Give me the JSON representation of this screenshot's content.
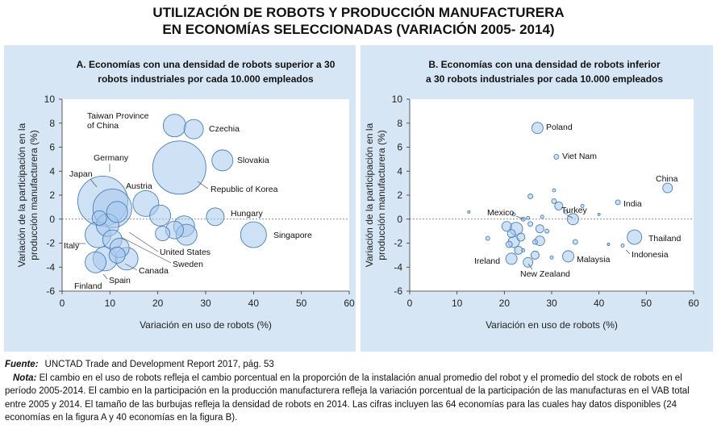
{
  "title_line1": "UTILIZACIÓN DE ROBOTS Y PRODUCCIÓN MANUFACTURERA",
  "title_line2": "EN ECONOMÍAS SELECCIONADAS (VARIACIÓN 2005- 2014)",
  "source_label": "Fuente:",
  "source_text": "UNCTAD Trade and Development Report 2017, pág. 53",
  "note_label": "Nota:",
  "note_text": "El cambio en el uso de robots refleja el cambio porcentual en la proporción de la instalación anual promedio del robot y el promedio del stock de robots en el período 2005-2014. El cambio en la participación en la producción manufacturera refleja la variación porcentual de la participación de las manufacturas en el VAB total entre 2005 y 2014. El tamaño de las burbujas refleja la densidad de robots en 2014. Las cifras incluyen las 64 economías para las cuales hay datos disponibles (24 economías en la figura A y 40 economías en la figura B).",
  "colors": {
    "panel": "#d6e6f4",
    "bubble_fill": "#a7c9ec",
    "bubble_stroke": "#4a7fb6"
  },
  "chart_data": [
    {
      "type": "scatter",
      "title": "A. Economías con una densidad de robots superior a 30 robots industriales por cada 10.000 empleados",
      "title_lines": [
        "A. Economías con una densidad de robots superior a 30",
        "robots industriales por cada 10.000 empleados"
      ],
      "xlabel": "Variación en uso de robots (%)",
      "ylabel_lines": [
        "Variación de la participación en la",
        "producción manufacturera (%)"
      ],
      "xlim": [
        0,
        60
      ],
      "ylim": [
        -6,
        10
      ],
      "xticks": [
        0,
        10,
        20,
        30,
        40,
        50,
        60
      ],
      "yticks": [
        -6,
        -4,
        -2,
        0,
        2,
        4,
        6,
        8,
        10
      ],
      "points": [
        {
          "label": "Taiwan Province of China",
          "x": 23.5,
          "y": 7.8,
          "size": 14
        },
        {
          "label": "Czechia",
          "x": 27.5,
          "y": 7.5,
          "size": 12
        },
        {
          "label": "Slovakia",
          "x": 33.5,
          "y": 4.9,
          "size": 13
        },
        {
          "label": "Republic of Korea",
          "x": 24.5,
          "y": 4.3,
          "size": 33
        },
        {
          "label": "Japan",
          "x": 8.5,
          "y": 1.5,
          "size": 31
        },
        {
          "label": "Germany",
          "x": 10.5,
          "y": 0.9,
          "size": 24
        },
        {
          "label": "Austria",
          "x": 17.5,
          "y": 1.3,
          "size": 16
        },
        {
          "label": "",
          "x": 11.5,
          "y": 0.6,
          "size": 13
        },
        {
          "label": "",
          "x": 7.8,
          "y": 0.1,
          "size": 9
        },
        {
          "label": "",
          "x": 9.5,
          "y": -0.5,
          "size": 14
        },
        {
          "label": "Hungary",
          "x": 32.0,
          "y": 0.2,
          "size": 11
        },
        {
          "label": "",
          "x": 20.5,
          "y": 0.3,
          "size": 13
        },
        {
          "label": "",
          "x": 25.5,
          "y": -0.6,
          "size": 13
        },
        {
          "label": "",
          "x": 21.0,
          "y": -1.2,
          "size": 9
        },
        {
          "label": "",
          "x": 23.5,
          "y": -0.9,
          "size": 11
        },
        {
          "label": "",
          "x": 26.0,
          "y": -1.3,
          "size": 13
        },
        {
          "label": "Singapore",
          "x": 40.0,
          "y": -1.3,
          "size": 16
        },
        {
          "label": "Italy",
          "x": 7.5,
          "y": -1.3,
          "size": 16
        },
        {
          "label": "",
          "x": 10.5,
          "y": -1.7,
          "size": 12
        },
        {
          "label": "United States",
          "x": 12.0,
          "y": -2.4,
          "size": 12
        },
        {
          "label": "Sweden",
          "x": 11.5,
          "y": -3.0,
          "size": 10
        },
        {
          "label": "Canada",
          "x": 13.5,
          "y": -3.3,
          "size": 14
        },
        {
          "label": "Spain",
          "x": 9.0,
          "y": -3.3,
          "size": 15
        },
        {
          "label": "Finland",
          "x": 7.0,
          "y": -3.6,
          "size": 13
        }
      ]
    },
    {
      "type": "scatter",
      "title": "B. Economías con una densidad de robots inferior a 30 robots industriales por cada 10.000 empleados",
      "title_lines": [
        "B. Economías con una densidad de robots inferior",
        "a 30 robots industriales por cada 10.000 empleados"
      ],
      "xlabel": "Variación en uso de robots (%)",
      "ylabel_lines": [
        "Variación de la participación en la",
        "producción manufacturera (%)"
      ],
      "xlim": [
        0,
        60
      ],
      "ylim": [
        -6,
        10
      ],
      "xticks": [
        0,
        10,
        20,
        30,
        40,
        50,
        60
      ],
      "yticks": [
        -6,
        -4,
        -2,
        0,
        2,
        4,
        6,
        8,
        10
      ],
      "points": [
        {
          "label": "Poland",
          "x": 27.0,
          "y": 7.6,
          "size": 7
        },
        {
          "label": "Viet Nam",
          "x": 31.0,
          "y": 5.2,
          "size": 3
        },
        {
          "label": "China",
          "x": 54.5,
          "y": 2.6,
          "size": 6
        },
        {
          "label": "India",
          "x": 44.0,
          "y": 1.4,
          "size": 3
        },
        {
          "label": "Turkey",
          "x": 34.5,
          "y": 0.0,
          "size": 7
        },
        {
          "label": "Mexico",
          "x": 22.0,
          "y": 0.4,
          "size": 2
        },
        {
          "label": "Thailand",
          "x": 47.5,
          "y": -1.5,
          "size": 9
        },
        {
          "label": "Indonesia",
          "x": 45.0,
          "y": -2.2,
          "size": 2
        },
        {
          "label": "Malaysia",
          "x": 33.5,
          "y": -3.1,
          "size": 7
        },
        {
          "label": "Ireland",
          "x": 21.5,
          "y": -3.3,
          "size": 7
        },
        {
          "label": "New Zealand",
          "x": 25.0,
          "y": -3.6,
          "size": 6
        },
        {
          "label": "",
          "x": 12.5,
          "y": 0.6,
          "size": 1.5
        },
        {
          "label": "",
          "x": 16.5,
          "y": -1.6,
          "size": 2.5
        },
        {
          "label": "",
          "x": 20.5,
          "y": -0.6,
          "size": 6
        },
        {
          "label": "",
          "x": 21.5,
          "y": -1.2,
          "size": 5
        },
        {
          "label": "",
          "x": 22.5,
          "y": -0.8,
          "size": 8
        },
        {
          "label": "",
          "x": 22.0,
          "y": -1.9,
          "size": 7
        },
        {
          "label": "",
          "x": 23.5,
          "y": -1.5,
          "size": 5
        },
        {
          "label": "",
          "x": 23.0,
          "y": -2.6,
          "size": 5
        },
        {
          "label": "",
          "x": 21.0,
          "y": -2.1,
          "size": 4
        },
        {
          "label": "",
          "x": 24.0,
          "y": 0.0,
          "size": 2.5
        },
        {
          "label": "",
          "x": 25.5,
          "y": -0.4,
          "size": 3
        },
        {
          "label": "",
          "x": 25.0,
          "y": 0.1,
          "size": 2
        },
        {
          "label": "",
          "x": 27.5,
          "y": -0.8,
          "size": 5
        },
        {
          "label": "",
          "x": 26.5,
          "y": -1.9,
          "size": 3
        },
        {
          "label": "",
          "x": 27.5,
          "y": -1.8,
          "size": 6
        },
        {
          "label": "",
          "x": 29.0,
          "y": -1.0,
          "size": 2.5
        },
        {
          "label": "",
          "x": 30.5,
          "y": 1.5,
          "size": 3
        },
        {
          "label": "",
          "x": 31.5,
          "y": 1.1,
          "size": 5
        },
        {
          "label": "",
          "x": 33.0,
          "y": 0.6,
          "size": 2.5
        },
        {
          "label": "",
          "x": 30.5,
          "y": 2.4,
          "size": 2
        },
        {
          "label": "",
          "x": 35.0,
          "y": -1.9,
          "size": 3
        },
        {
          "label": "",
          "x": 36.5,
          "y": 1.1,
          "size": 2
        },
        {
          "label": "",
          "x": 40.0,
          "y": 0.4,
          "size": 1.5
        },
        {
          "label": "",
          "x": 42.0,
          "y": -2.1,
          "size": 1.5
        },
        {
          "label": "",
          "x": 26.5,
          "y": -3.0,
          "size": 5
        },
        {
          "label": "",
          "x": 30.0,
          "y": -3.2,
          "size": 2
        },
        {
          "label": "",
          "x": 24.0,
          "y": -2.6,
          "size": 2
        },
        {
          "label": "",
          "x": 25.5,
          "y": 1.9,
          "size": 3
        },
        {
          "label": "",
          "x": 28.0,
          "y": 0.2,
          "size": 2
        }
      ]
    }
  ]
}
